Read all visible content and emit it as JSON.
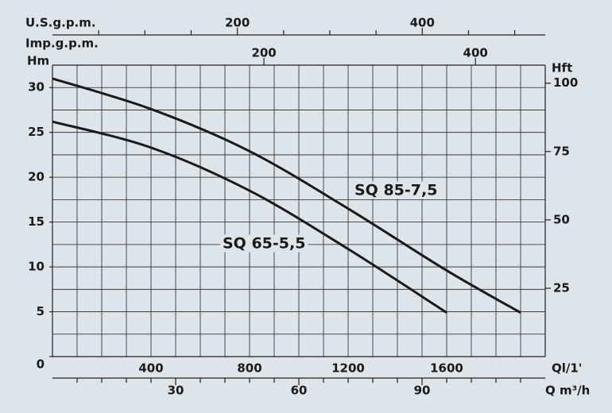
{
  "chart_data": {
    "type": "line",
    "x_label": "Ql/1'",
    "y_label": "Hm",
    "y2_label": "Hft",
    "xlim": [
      0,
      2000
    ],
    "xticks": [
      400,
      800,
      1200,
      1600
    ],
    "xgrid": [
      100,
      200,
      300,
      400,
      500,
      600,
      700,
      800,
      900,
      1000,
      1100,
      1200,
      1300,
      1400,
      1500,
      1600,
      1700,
      1800,
      1900
    ],
    "ylim": [
      0,
      32.5
    ],
    "yticks": [
      0,
      5,
      10,
      15,
      20,
      25,
      30
    ],
    "ygrid": [
      2.5,
      5,
      7.5,
      10,
      12.5,
      15,
      17.5,
      20,
      22.5,
      25,
      27.5,
      30
    ],
    "y2lim": [
      0,
      106.6
    ],
    "y2ticks": [
      25,
      50,
      75,
      100
    ],
    "extra_x_axes": [
      {
        "label": "U.S.g.p.m.",
        "xlim": [
          0,
          533
        ],
        "xticks": [
          200,
          400
        ],
        "minor_ticks": [
          50,
          100,
          150,
          250,
          300,
          350,
          450,
          500
        ]
      },
      {
        "label": "Imp.g.p.m.",
        "xlim": [
          0,
          466
        ],
        "xticks": [
          200,
          400
        ]
      },
      {
        "label": "Q m³/h",
        "xlim": [
          0,
          120
        ],
        "xticks": [
          30,
          60,
          90
        ],
        "minor_ticks": [
          6,
          12,
          18,
          24,
          36,
          42,
          48,
          54,
          66,
          72,
          78,
          84,
          96,
          102,
          108,
          114
        ]
      }
    ],
    "series": [
      {
        "name": "SQ 85-7,5",
        "color": "#1a1a1a",
        "x": [
          0,
          400,
          800,
          1200,
          1600,
          1900
        ],
        "values": [
          31.0,
          27.6,
          22.9,
          16.5,
          9.6,
          4.9
        ]
      },
      {
        "name": "SQ 65-5,5",
        "color": "#1a1a1a",
        "x": [
          0,
          400,
          800,
          1200,
          1600
        ],
        "values": [
          26.2,
          23.3,
          18.5,
          12.0,
          4.9
        ]
      }
    ]
  }
}
